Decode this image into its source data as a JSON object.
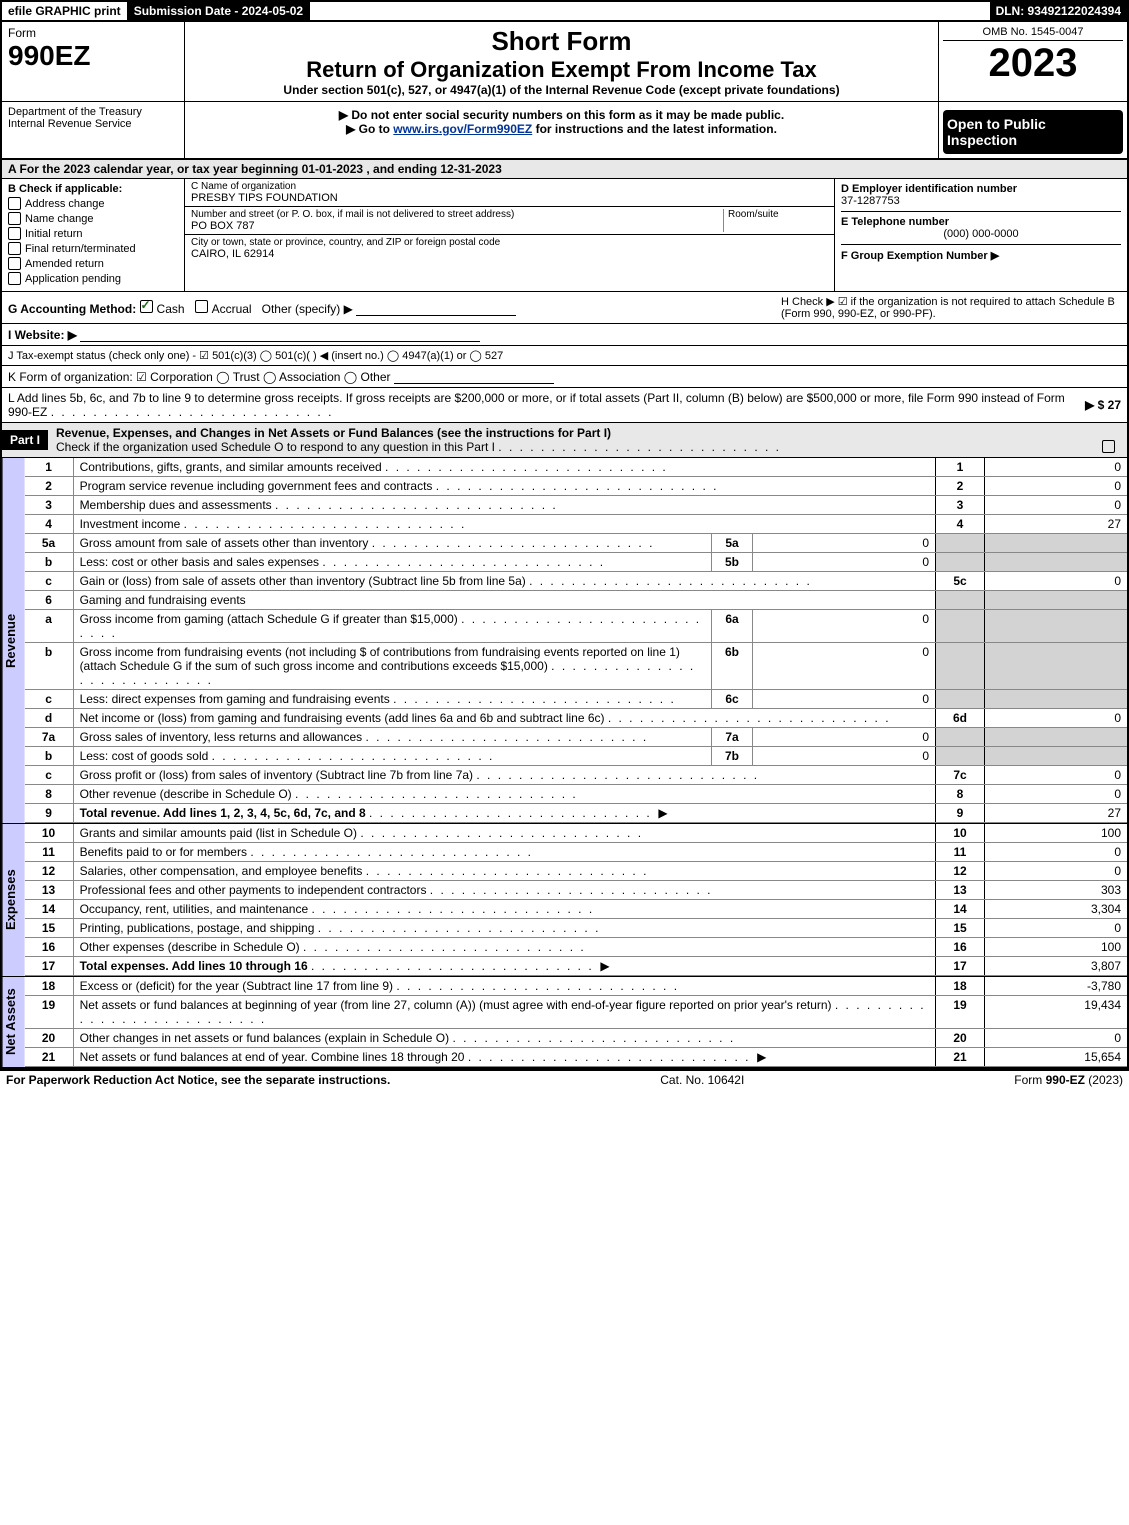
{
  "topbar": {
    "efile": "efile GRAPHIC print",
    "submission": "Submission Date - 2024-05-02",
    "dln": "DLN: 93492122024394"
  },
  "header": {
    "form_label": "Form",
    "form_number": "990EZ",
    "dept1": "Department of the Treasury",
    "dept2": "Internal Revenue Service",
    "short_form": "Short Form",
    "title": "Return of Organization Exempt From Income Tax",
    "subtitle": "Under section 501(c), 527, or 4947(a)(1) of the Internal Revenue Code (except private foundations)",
    "note1": "▶ Do not enter social security numbers on this form as it may be made public.",
    "note2_prefix": "▶ Go to ",
    "note2_link": "www.irs.gov/Form990EZ",
    "note2_suffix": " for instructions and the latest information.",
    "omb": "OMB No. 1545-0047",
    "year": "2023",
    "open": "Open to Public Inspection"
  },
  "section_a": "A  For the 2023 calendar year, or tax year beginning 01-01-2023 , and ending 12-31-2023",
  "box_b": {
    "title": "B  Check if applicable:",
    "items": [
      "Address change",
      "Name change",
      "Initial return",
      "Final return/terminated",
      "Amended return",
      "Application pending"
    ]
  },
  "box_c": {
    "label_name": "C Name of organization",
    "name": "PRESBY TIPS FOUNDATION",
    "label_street": "Number and street (or P. O. box, if mail is not delivered to street address)",
    "room_label": "Room/suite",
    "street": "PO BOX 787",
    "label_city": "City or town, state or province, country, and ZIP or foreign postal code",
    "city": "CAIRO, IL  62914"
  },
  "box_d": {
    "ein_label": "D Employer identification number",
    "ein": "37-1287753",
    "tel_label": "E Telephone number",
    "tel": "(000) 000-0000",
    "group_label": "F Group Exemption Number   ▶"
  },
  "line_g": {
    "label": "G Accounting Method:",
    "opt1": "Cash",
    "opt2": "Accrual",
    "opt3": "Other (specify) ▶"
  },
  "line_h": "H  Check ▶  ☑  if the organization is not required to attach Schedule B (Form 990, 990-EZ, or 990-PF).",
  "line_i": "I Website: ▶",
  "line_j": "J Tax-exempt status (check only one) -  ☑ 501(c)(3)  ◯ 501(c)(  ) ◀ (insert no.)  ◯ 4947(a)(1) or  ◯ 527",
  "line_k": "K Form of organization:   ☑ Corporation   ◯ Trust   ◯ Association   ◯ Other",
  "line_l": {
    "text": "L Add lines 5b, 6c, and 7b to line 9 to determine gross receipts. If gross receipts are $200,000 or more, or if total assets (Part II, column (B) below) are $500,000 or more, file Form 990 instead of Form 990-EZ",
    "value": "▶ $ 27"
  },
  "part1": {
    "label": "Part I",
    "title": "Revenue, Expenses, and Changes in Net Assets or Fund Balances (see the instructions for Part I)",
    "check": "Check if the organization used Schedule O to respond to any question in this Part I",
    "side_revenue": "Revenue",
    "side_expenses": "Expenses",
    "side_netassets": "Net Assets"
  },
  "rows_revenue": [
    {
      "n": "1",
      "desc": "Contributions, gifts, grants, and similar amounts received",
      "rn": "1",
      "amt": "0"
    },
    {
      "n": "2",
      "desc": "Program service revenue including government fees and contracts",
      "rn": "2",
      "amt": "0"
    },
    {
      "n": "3",
      "desc": "Membership dues and assessments",
      "rn": "3",
      "amt": "0"
    },
    {
      "n": "4",
      "desc": "Investment income",
      "rn": "4",
      "amt": "27"
    },
    {
      "n": "5a",
      "desc": "Gross amount from sale of assets other than inventory",
      "sn": "5a",
      "samt": "0"
    },
    {
      "n": "b",
      "desc": "Less: cost or other basis and sales expenses",
      "sn": "5b",
      "samt": "0"
    },
    {
      "n": "c",
      "desc": "Gain or (loss) from sale of assets other than inventory (Subtract line 5b from line 5a)",
      "rn": "5c",
      "amt": "0"
    },
    {
      "n": "6",
      "desc": "Gaming and fundraising events"
    },
    {
      "n": "a",
      "desc": "Gross income from gaming (attach Schedule G if greater than $15,000)",
      "sn": "6a",
      "samt": "0"
    },
    {
      "n": "b",
      "desc": "Gross income from fundraising events (not including $                    of contributions from fundraising events reported on line 1) (attach Schedule G if the sum of such gross income and contributions exceeds $15,000)",
      "sn": "6b",
      "samt": "0"
    },
    {
      "n": "c",
      "desc": "Less: direct expenses from gaming and fundraising events",
      "sn": "6c",
      "samt": "0"
    },
    {
      "n": "d",
      "desc": "Net income or (loss) from gaming and fundraising events (add lines 6a and 6b and subtract line 6c)",
      "rn": "6d",
      "amt": "0"
    },
    {
      "n": "7a",
      "desc": "Gross sales of inventory, less returns and allowances",
      "sn": "7a",
      "samt": "0"
    },
    {
      "n": "b",
      "desc": "Less: cost of goods sold",
      "sn": "7b",
      "samt": "0"
    },
    {
      "n": "c",
      "desc": "Gross profit or (loss) from sales of inventory (Subtract line 7b from line 7a)",
      "rn": "7c",
      "amt": "0"
    },
    {
      "n": "8",
      "desc": "Other revenue (describe in Schedule O)",
      "rn": "8",
      "amt": "0"
    },
    {
      "n": "9",
      "desc": "Total revenue. Add lines 1, 2, 3, 4, 5c, 6d, 7c, and 8",
      "rn": "9",
      "amt": "27",
      "bold": true,
      "arrow": true
    }
  ],
  "rows_expenses": [
    {
      "n": "10",
      "desc": "Grants and similar amounts paid (list in Schedule O)",
      "rn": "10",
      "amt": "100"
    },
    {
      "n": "11",
      "desc": "Benefits paid to or for members",
      "rn": "11",
      "amt": "0"
    },
    {
      "n": "12",
      "desc": "Salaries, other compensation, and employee benefits",
      "rn": "12",
      "amt": "0"
    },
    {
      "n": "13",
      "desc": "Professional fees and other payments to independent contractors",
      "rn": "13",
      "amt": "303"
    },
    {
      "n": "14",
      "desc": "Occupancy, rent, utilities, and maintenance",
      "rn": "14",
      "amt": "3,304"
    },
    {
      "n": "15",
      "desc": "Printing, publications, postage, and shipping",
      "rn": "15",
      "amt": "0"
    },
    {
      "n": "16",
      "desc": "Other expenses (describe in Schedule O)",
      "rn": "16",
      "amt": "100"
    },
    {
      "n": "17",
      "desc": "Total expenses. Add lines 10 through 16",
      "rn": "17",
      "amt": "3,807",
      "bold": true,
      "arrow": true
    }
  ],
  "rows_netassets": [
    {
      "n": "18",
      "desc": "Excess or (deficit) for the year (Subtract line 17 from line 9)",
      "rn": "18",
      "amt": "-3,780"
    },
    {
      "n": "19",
      "desc": "Net assets or fund balances at beginning of year (from line 27, column (A)) (must agree with end-of-year figure reported on prior year's return)",
      "rn": "19",
      "amt": "19,434"
    },
    {
      "n": "20",
      "desc": "Other changes in net assets or fund balances (explain in Schedule O)",
      "rn": "20",
      "amt": "0"
    },
    {
      "n": "21",
      "desc": "Net assets or fund balances at end of year. Combine lines 18 through 20",
      "rn": "21",
      "amt": "15,654",
      "arrow": true
    }
  ],
  "footer": {
    "left": "For Paperwork Reduction Act Notice, see the separate instructions.",
    "center": "Cat. No. 10642I",
    "right": "Form 990-EZ (2023)"
  }
}
